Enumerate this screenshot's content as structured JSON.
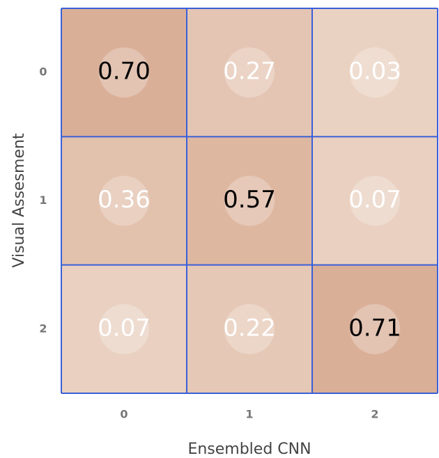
{
  "chart_data": {
    "type": "heatmap",
    "x_label": "Ensembled CNN",
    "y_label": "Visual Assesment",
    "x_categories": [
      "0",
      "1",
      "2"
    ],
    "y_categories": [
      "0",
      "1",
      "2"
    ],
    "values": [
      [
        0.7,
        0.27,
        0.03
      ],
      [
        0.36,
        0.57,
        0.07
      ],
      [
        0.07,
        0.22,
        0.71
      ]
    ],
    "value_labels": [
      [
        "0.70",
        "0.27",
        "0.03"
      ],
      [
        "0.36",
        "0.57",
        "0.07"
      ],
      [
        "0.07",
        "0.22",
        "0.71"
      ]
    ],
    "color": "#c98a6c",
    "grid_color": "#3a5fd8"
  }
}
